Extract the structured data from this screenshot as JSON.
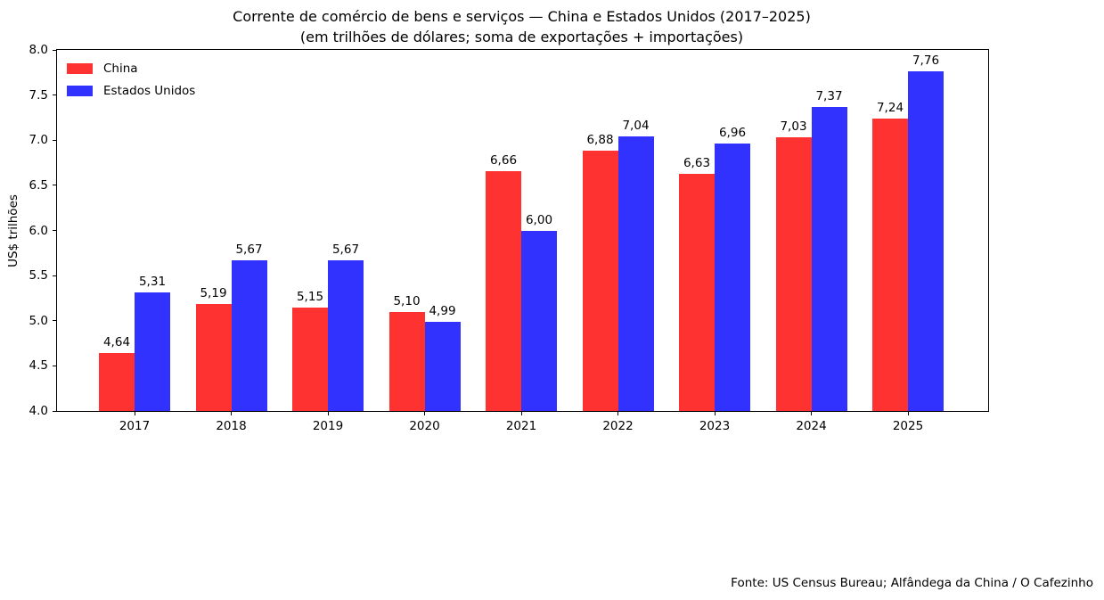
{
  "title": {
    "line1": "Corrente de comércio de bens e serviços — China e Estados Unidos (2017–2025)",
    "line2": "(em trilhões de dólares; soma de exportações + importações)"
  },
  "footer": {
    "source": "Fonte: US Census Bureau; Alfândega da China / O Cafezinho"
  },
  "chart_data": {
    "type": "bar",
    "title": "Corrente de comércio de bens e serviços — China e Estados Unidos (2017–2025)",
    "subtitle": "(em trilhões de dólares; soma de exportações + importações)",
    "categories": [
      "2017",
      "2018",
      "2019",
      "2020",
      "2021",
      "2022",
      "2023",
      "2024",
      "2025"
    ],
    "series": [
      {
        "name": "China",
        "color": "#ff3232",
        "values": [
          4.64,
          5.19,
          5.15,
          5.1,
          6.66,
          6.88,
          6.63,
          7.03,
          7.24
        ],
        "labels": [
          "4,64",
          "5,19",
          "5,15",
          "5,10",
          "6,66",
          "6,88",
          "6,63",
          "7,03",
          "7,24"
        ]
      },
      {
        "name": "Estados Unidos",
        "color": "#3232ff",
        "values": [
          5.31,
          5.67,
          5.67,
          4.99,
          6.0,
          7.04,
          6.96,
          7.37,
          7.76
        ],
        "labels": [
          "5,31",
          "5,67",
          "5,67",
          "4,99",
          "6,00",
          "7,04",
          "6,96",
          "7,37",
          "7,76"
        ]
      }
    ],
    "xlabel": "",
    "ylabel": "US$ trilhões",
    "ylim": [
      4.0,
      8.0
    ],
    "yticks": [
      {
        "v": 4.0,
        "label": "4.0"
      },
      {
        "v": 4.5,
        "label": "4.5"
      },
      {
        "v": 5.0,
        "label": "5.0"
      },
      {
        "v": 5.5,
        "label": "5.5"
      },
      {
        "v": 6.0,
        "label": "6.0"
      },
      {
        "v": 6.5,
        "label": "6.5"
      },
      {
        "v": 7.0,
        "label": "7.0"
      },
      {
        "v": 7.5,
        "label": "7.5"
      },
      {
        "v": 8.0,
        "label": "8.0"
      }
    ],
    "grid": false,
    "legend_position": "upper left",
    "value_labels_shown": true
  }
}
